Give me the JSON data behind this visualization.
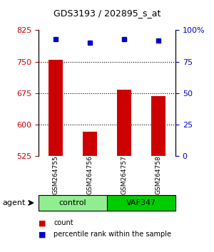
{
  "title": "GDS3193 / 202895_s_at",
  "samples": [
    "GSM264755",
    "GSM264756",
    "GSM264757",
    "GSM264758"
  ],
  "counts": [
    755,
    583,
    683,
    668
  ],
  "percentiles": [
    93,
    90,
    93,
    92
  ],
  "ylim_left": [
    525,
    825
  ],
  "ylim_right": [
    0,
    100
  ],
  "yticks_left": [
    525,
    600,
    675,
    750,
    825
  ],
  "yticks_right": [
    0,
    25,
    50,
    75,
    100
  ],
  "ytick_labels_right": [
    "0",
    "25",
    "50",
    "75",
    "100%"
  ],
  "bar_color": "#cc0000",
  "dot_color": "#0000cc",
  "grid_ticks": [
    600,
    675,
    750
  ],
  "groups": [
    {
      "label": "control",
      "samples": [
        0,
        1
      ],
      "color": "#90ee90"
    },
    {
      "label": "VAF347",
      "samples": [
        2,
        3
      ],
      "color": "#00cc00"
    }
  ],
  "agent_label": "agent",
  "legend_count_label": "count",
  "legend_pct_label": "percentile rank within the sample",
  "bg_color": "#ffffff",
  "plot_bg_color": "#ffffff",
  "sample_box_color": "#cccccc",
  "bar_width": 0.4
}
